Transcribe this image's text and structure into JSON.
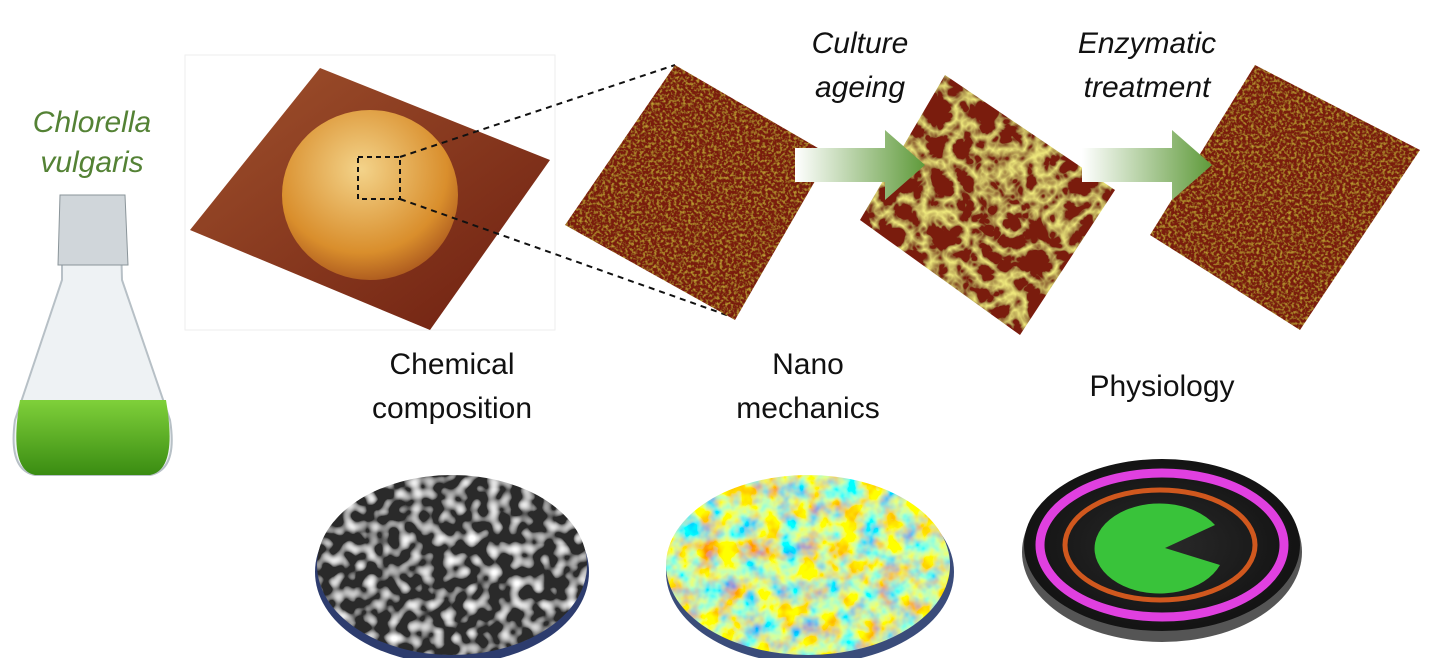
{
  "species": {
    "lines": [
      "Chlorella",
      "vulgaris"
    ]
  },
  "steps": [
    {
      "lines": [
        "Culture",
        "ageing"
      ]
    },
    {
      "lines": [
        "Enzymatic",
        "treatment"
      ]
    }
  ],
  "panels": [
    {
      "lines": [
        "Chemical",
        "composition"
      ]
    },
    {
      "lines": [
        "Nano",
        "mechanics"
      ]
    },
    {
      "lines": [
        "Physiology"
      ]
    }
  ]
}
